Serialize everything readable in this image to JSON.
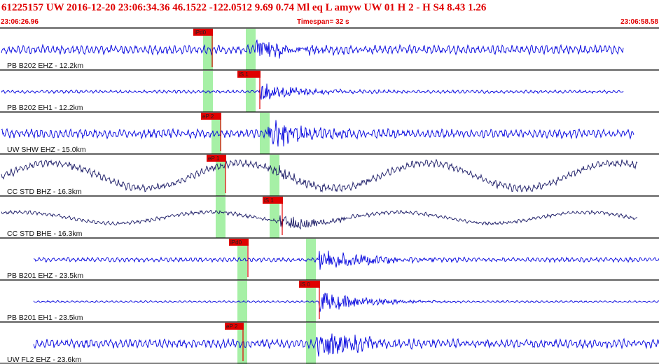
{
  "header": {
    "event_line": "61225157 UW 2016-12-20 23:06:34.36   46.1522 -122.0512   9.69  0.74 Ml  eq  L amyw     UW 01  H  2  -  H S4    8.43  1.26",
    "start_time": "23:06:26.96",
    "timespan": "Timespan=  32 s",
    "end_time": "23:06:58.58"
  },
  "colors": {
    "trace_blue": "#0000dd",
    "trace_navy": "#1a1a66",
    "pick_red": "#e00000",
    "pick_window_green": "#a6f0a6",
    "text_red": "#e00000"
  },
  "channels": [
    {
      "label": "PB B202 EHZ - 12.2km",
      "color": "blue",
      "pick": {
        "text": "iPd0"
      }
    },
    {
      "label": "PB B202 EH1 - 12.2km",
      "color": "blue",
      "pick": {
        "text": "iS 1"
      }
    },
    {
      "label": "UW SHW EHZ - 15.0km",
      "color": "blue",
      "pick": {
        "text": "eP 2"
      }
    },
    {
      "label": "CC STD BHZ - 16.3km",
      "color": "navy",
      "pick": {
        "text": "eP 1"
      }
    },
    {
      "label": "CC STD BHE - 16.3km",
      "color": "navy",
      "pick": {
        "text": "iS 1"
      }
    },
    {
      "label": "PB B201 EHZ - 23.5km",
      "color": "blue",
      "pick": {
        "text": "iPd0"
      }
    },
    {
      "label": "PB B201 EH1 - 23.5km",
      "color": "blue",
      "pick": {
        "text": "iS 0"
      }
    },
    {
      "label": "UW FL2 EHZ - 23.6km",
      "color": "blue",
      "pick": {
        "text": "eP 2"
      }
    }
  ]
}
